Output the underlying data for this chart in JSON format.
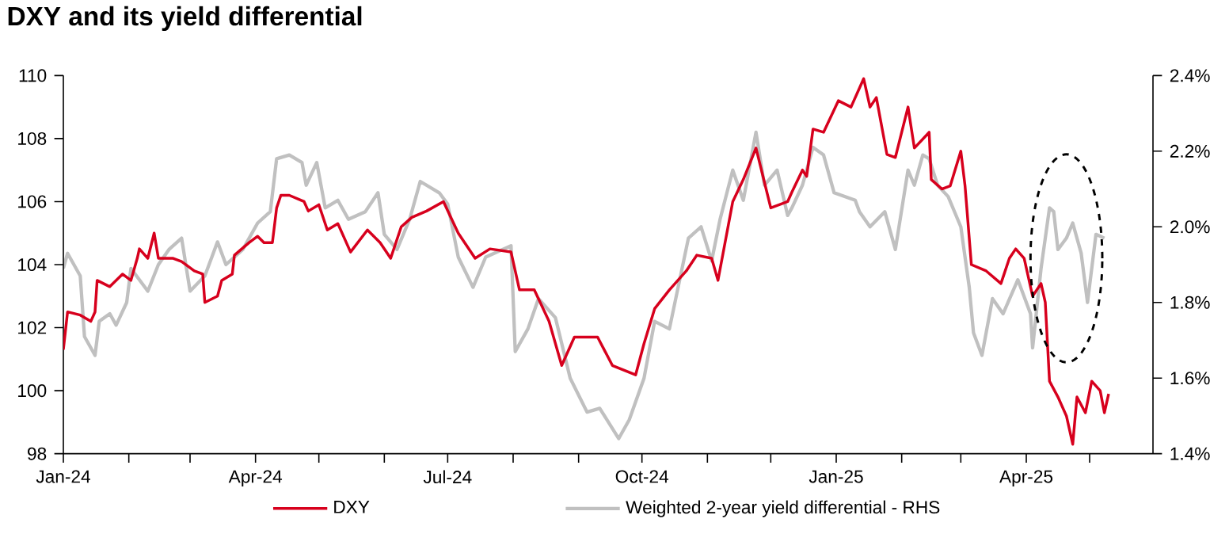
{
  "chart_data": {
    "type": "line",
    "title": "DXY and its yield differential",
    "xlim": [
      "2024-01-01",
      "2025-05-31"
    ],
    "xticks": [
      {
        "value": "2024-01-01",
        "label": "Jan-24"
      },
      {
        "value": "2024-02-01",
        "label": null
      },
      {
        "value": "2024-03-01",
        "label": null
      },
      {
        "value": "2024-04-01",
        "label": "Apr-24"
      },
      {
        "value": "2024-05-01",
        "label": null
      },
      {
        "value": "2024-06-01",
        "label": null
      },
      {
        "value": "2024-07-01",
        "label": "Jul-24"
      },
      {
        "value": "2024-08-01",
        "label": null
      },
      {
        "value": "2024-09-01",
        "label": null
      },
      {
        "value": "2024-10-01",
        "label": "Oct-24"
      },
      {
        "value": "2024-11-01",
        "label": null
      },
      {
        "value": "2024-12-01",
        "label": null
      },
      {
        "value": "2025-01-01",
        "label": "Jan-25"
      },
      {
        "value": "2025-02-01",
        "label": null
      },
      {
        "value": "2025-03-01",
        "label": null
      },
      {
        "value": "2025-04-01",
        "label": "Apr-25"
      },
      {
        "value": "2025-05-01",
        "label": null
      }
    ],
    "ylim": [
      98,
      110
    ],
    "yticks": [
      98,
      100,
      102,
      104,
      106,
      108,
      110
    ],
    "y2lim": [
      1.4,
      2.4
    ],
    "y2ticks": [
      {
        "value": 1.4,
        "label": "1.4%"
      },
      {
        "value": 1.6,
        "label": "1.6%"
      },
      {
        "value": 1.8,
        "label": "1.8%"
      },
      {
        "value": 2.0,
        "label": "2.0%"
      },
      {
        "value": 2.2,
        "label": "2.2%"
      },
      {
        "value": 2.4,
        "label": "2.4%"
      }
    ],
    "legend": "bottom",
    "series": [
      {
        "name": "DXY",
        "color": "#d7001d",
        "x": [
          "2024-01-01",
          "2024-01-03",
          "2024-01-09",
          "2024-01-14",
          "2024-01-16",
          "2024-01-17",
          "2024-01-23",
          "2024-01-29",
          "2024-02-02",
          "2024-02-05",
          "2024-02-06",
          "2024-02-10",
          "2024-02-13",
          "2024-02-15",
          "2024-02-22",
          "2024-02-26",
          "2024-03-03",
          "2024-03-07",
          "2024-03-08",
          "2024-03-14",
          "2024-03-16",
          "2024-03-21",
          "2024-03-22",
          "2024-03-29",
          "2024-04-02",
          "2024-04-05",
          "2024-04-09",
          "2024-04-11",
          "2024-04-13",
          "2024-04-17",
          "2024-04-24",
          "2024-04-26",
          "2024-05-01",
          "2024-05-05",
          "2024-05-10",
          "2024-05-16",
          "2024-05-24",
          "2024-05-30",
          "2024-06-04",
          "2024-06-09",
          "2024-06-14",
          "2024-06-21",
          "2024-06-29",
          "2024-07-06",
          "2024-07-14",
          "2024-07-21",
          "2024-07-31",
          "2024-08-04",
          "2024-08-11",
          "2024-08-18",
          "2024-08-24",
          "2024-08-30",
          "2024-09-10",
          "2024-09-17",
          "2024-09-28",
          "2024-10-02",
          "2024-10-07",
          "2024-10-14",
          "2024-10-22",
          "2024-10-27",
          "2024-11-03",
          "2024-11-06",
          "2024-11-13",
          "2024-11-18",
          "2024-11-24",
          "2024-12-01",
          "2024-12-09",
          "2024-12-11",
          "2024-12-16",
          "2024-12-18",
          "2024-12-21",
          "2024-12-26",
          "2025-01-02",
          "2025-01-08",
          "2025-01-14",
          "2025-01-17",
          "2025-01-20",
          "2025-01-25",
          "2025-01-29",
          "2025-02-04",
          "2025-02-07",
          "2025-02-14",
          "2025-02-15",
          "2025-02-20",
          "2025-02-24",
          "2025-03-01",
          "2025-03-03",
          "2025-03-06",
          "2025-03-13",
          "2025-03-20",
          "2025-03-24",
          "2025-03-27",
          "2025-03-31",
          "2025-04-04",
          "2025-04-08",
          "2025-04-10",
          "2025-04-12",
          "2025-04-16",
          "2025-04-20",
          "2025-04-23",
          "2025-04-25",
          "2025-04-29",
          "2025-05-02",
          "2025-05-06",
          "2025-05-08",
          "2025-05-10"
        ],
        "values": [
          101.3,
          102.5,
          102.4,
          102.2,
          102.5,
          103.5,
          103.3,
          103.7,
          103.5,
          104.2,
          104.5,
          104.2,
          105.0,
          104.2,
          104.2,
          104.1,
          103.8,
          103.7,
          102.8,
          103.0,
          103.5,
          103.7,
          104.3,
          104.7,
          104.9,
          104.7,
          104.7,
          105.8,
          106.2,
          106.2,
          106.0,
          105.7,
          105.9,
          105.1,
          105.3,
          104.4,
          105.1,
          104.7,
          104.2,
          105.2,
          105.5,
          105.7,
          106.0,
          105.0,
          104.2,
          104.5,
          104.4,
          103.2,
          103.2,
          102.2,
          100.8,
          101.7,
          101.7,
          100.8,
          100.5,
          101.5,
          102.6,
          103.2,
          103.8,
          104.3,
          104.2,
          103.5,
          106.0,
          106.7,
          107.7,
          105.8,
          106.0,
          106.3,
          107.0,
          106.8,
          108.3,
          108.2,
          109.2,
          109.0,
          109.9,
          109.0,
          109.3,
          107.5,
          107.4,
          109.0,
          107.7,
          108.2,
          106.7,
          106.4,
          106.5,
          107.6,
          106.5,
          104.0,
          103.8,
          103.4,
          104.2,
          104.5,
          104.2,
          103.0,
          103.4,
          102.8,
          100.3,
          99.8,
          99.2,
          98.3,
          99.8,
          99.3,
          100.3,
          100.0,
          99.3,
          99.9
        ]
      },
      {
        "name": "Weighted 2-year yield differential - RHS",
        "color": "#c0c0c0",
        "axis": "y2",
        "x": [
          "2024-01-01",
          "2024-01-03",
          "2024-01-09",
          "2024-01-11",
          "2024-01-16",
          "2024-01-18",
          "2024-01-23",
          "2024-01-26",
          "2024-01-31",
          "2024-02-02",
          "2024-02-10",
          "2024-02-15",
          "2024-02-20",
          "2024-02-26",
          "2024-03-01",
          "2024-03-08",
          "2024-03-14",
          "2024-03-18",
          "2024-03-26",
          "2024-04-02",
          "2024-04-08",
          "2024-04-11",
          "2024-04-17",
          "2024-04-23",
          "2024-04-25",
          "2024-04-30",
          "2024-05-04",
          "2024-05-10",
          "2024-05-15",
          "2024-05-23",
          "2024-05-29",
          "2024-06-01",
          "2024-06-07",
          "2024-06-13",
          "2024-06-18",
          "2024-06-27",
          "2024-07-01",
          "2024-07-06",
          "2024-07-13",
          "2024-07-19",
          "2024-07-31",
          "2024-08-02",
          "2024-08-08",
          "2024-08-13",
          "2024-08-21",
          "2024-08-28",
          "2024-09-05",
          "2024-09-11",
          "2024-09-20",
          "2024-09-25",
          "2024-10-02",
          "2024-10-07",
          "2024-10-14",
          "2024-10-23",
          "2024-10-29",
          "2024-11-03",
          "2024-11-07",
          "2024-11-13",
          "2024-11-18",
          "2024-11-24",
          "2024-11-28",
          "2024-12-04",
          "2024-12-09",
          "2024-12-11",
          "2024-12-16",
          "2024-12-21",
          "2024-12-26",
          "2024-12-31",
          "2025-01-10",
          "2025-01-12",
          "2025-01-17",
          "2025-01-24",
          "2025-01-29",
          "2025-02-04",
          "2025-02-07",
          "2025-02-11",
          "2025-02-14",
          "2025-02-18",
          "2025-02-23",
          "2025-03-01",
          "2025-03-05",
          "2025-03-07",
          "2025-03-11",
          "2025-03-16",
          "2025-03-21",
          "2025-03-28",
          "2025-04-03",
          "2025-04-04",
          "2025-04-08",
          "2025-04-12",
          "2025-04-14",
          "2025-04-16",
          "2025-04-20",
          "2025-04-23",
          "2025-04-27",
          "2025-04-30",
          "2025-05-04",
          "2025-05-08"
        ],
        "values": [
          1.89,
          1.93,
          1.87,
          1.71,
          1.66,
          1.75,
          1.77,
          1.74,
          1.8,
          1.89,
          1.83,
          1.9,
          1.94,
          1.97,
          1.83,
          1.87,
          1.96,
          1.9,
          1.94,
          2.01,
          2.04,
          2.18,
          2.19,
          2.17,
          2.11,
          2.17,
          2.05,
          2.07,
          2.02,
          2.04,
          2.09,
          1.98,
          1.94,
          2.02,
          2.12,
          2.09,
          2.06,
          1.92,
          1.84,
          1.92,
          1.95,
          1.67,
          1.73,
          1.81,
          1.76,
          1.6,
          1.51,
          1.52,
          1.44,
          1.49,
          1.6,
          1.75,
          1.73,
          1.97,
          2.0,
          1.91,
          2.02,
          2.15,
          2.07,
          2.25,
          2.11,
          2.15,
          2.03,
          2.05,
          2.11,
          2.21,
          2.19,
          2.09,
          2.07,
          2.04,
          2.0,
          2.04,
          1.94,
          2.15,
          2.11,
          2.19,
          2.18,
          2.11,
          2.08,
          2.0,
          1.84,
          1.72,
          1.66,
          1.81,
          1.77,
          1.86,
          1.77,
          1.68,
          1.89,
          2.05,
          2.04,
          1.94,
          1.97,
          2.01,
          1.93,
          1.8,
          1.98,
          1.97
        ]
      }
    ]
  }
}
